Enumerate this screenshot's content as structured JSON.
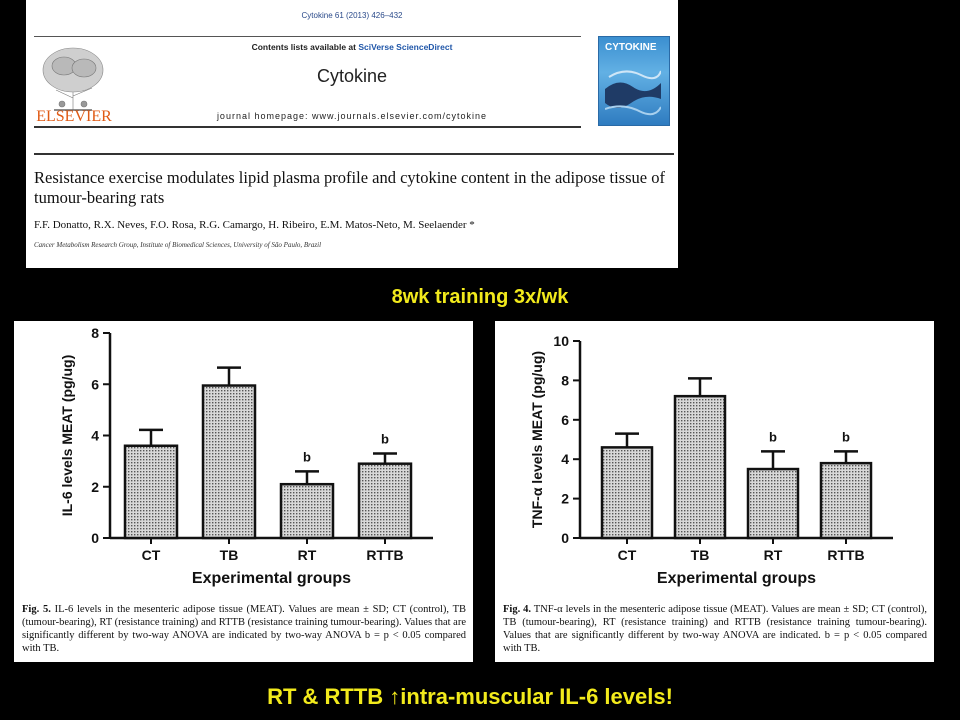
{
  "journal": {
    "citation": "Cytokine 61 (2013) 426–432",
    "contents_prefix": "Contents lists available at ",
    "contents_link": "SciVerse ScienceDirect",
    "name": "Cytokine",
    "homepage": "journal homepage: www.journals.elsevier.com/cytokine",
    "publisher": "ELSEVIER",
    "cover_title": "CYTOKINE",
    "article_title": "Resistance exercise modulates lipid plasma profile and cytokine content in the adipose tissue of tumour-bearing rats",
    "authors": "F.F. Donatto, R.X. Neves, F.O. Rosa, R.G. Camargo, H. Ribeiro, E.M. Matos-Neto, M. Seelaender *",
    "affiliation": "Cancer Metabolism Research Group, Institute of Biomedical Sciences, University of São Paulo, Brazil"
  },
  "subtitle": "8wk training 3x/wk",
  "footer": "RT & RTTB ↑intra-muscular IL-6 levels!",
  "colors": {
    "highlight": "#f2ea1c",
    "background": "#000000"
  },
  "chart_data": [
    {
      "type": "bar",
      "categories": [
        "CT",
        "TB",
        "RT",
        "RTTB"
      ],
      "values": [
        3.6,
        5.95,
        2.1,
        2.9
      ],
      "errors": [
        0.62,
        0.7,
        0.5,
        0.4
      ],
      "significance": [
        "",
        "",
        "b",
        "b"
      ],
      "ylabel": "IL-6 levels MEAT (pg/ug)",
      "xlabel": "Experimental groups",
      "ylim": [
        0,
        8
      ],
      "yticks": [
        0,
        2,
        4,
        6,
        8
      ],
      "caption_label": "Fig. 5.",
      "caption_text": "IL-6 levels in the mesenteric adipose tissue (MEAT). Values are mean ± SD; CT (control), TB (tumour-bearing), RT (resistance training) and RTTB (resistance training tumour-bearing). Values that are significantly different by two-way ANOVA are indicated by two-way ANOVA b = p < 0.05 compared with TB."
    },
    {
      "type": "bar",
      "categories": [
        "CT",
        "TB",
        "RT",
        "RTTB"
      ],
      "values": [
        4.6,
        7.2,
        3.5,
        3.8
      ],
      "errors": [
        0.7,
        0.9,
        0.9,
        0.6
      ],
      "significance": [
        "",
        "",
        "b",
        "b"
      ],
      "ylabel": "TNF-α levels MEAT (pg/ug)",
      "xlabel": "Experimental groups",
      "ylim": [
        0,
        10
      ],
      "yticks": [
        0,
        2,
        4,
        6,
        8,
        10
      ],
      "caption_label": "Fig. 4.",
      "caption_text": "TNF-α levels in the mesenteric adipose tissue (MEAT). Values are mean ± SD; CT (control), TB (tumour-bearing), RT (resistance training) and RTTB (resistance training tumour-bearing). Values that are significantly different by two-way ANOVA are indicated. b = p < 0.05 compared with TB."
    }
  ]
}
